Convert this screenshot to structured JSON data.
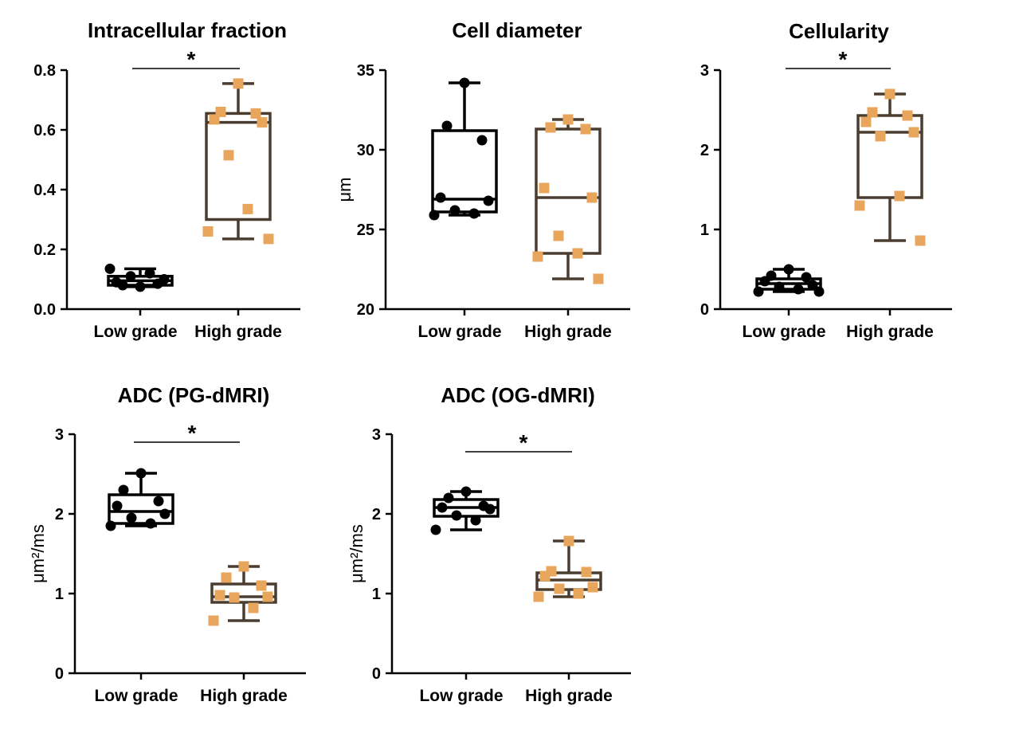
{
  "chart_data": [
    {
      "type": "box",
      "title": "Intracellular fraction",
      "ylabel": "",
      "ylim": [
        0,
        0.8
      ],
      "yticks": [
        "0.0",
        "0.2",
        "0.4",
        "0.6",
        "0.8"
      ],
      "categories": [
        "Low grade",
        "High grade"
      ],
      "significance": "*",
      "series": [
        {
          "name": "Low grade",
          "color": "#000000",
          "box": {
            "min": 0.075,
            "q1": 0.08,
            "median": 0.095,
            "q3": 0.11,
            "max": 0.135
          },
          "points": [
            0.075,
            0.08,
            0.085,
            0.09,
            0.1,
            0.11,
            0.12,
            0.135
          ]
        },
        {
          "name": "High grade",
          "color": "#e8a55c",
          "box": {
            "min": 0.235,
            "q1": 0.3,
            "median": 0.625,
            "q3": 0.655,
            "max": 0.755
          },
          "points": [
            0.755,
            0.66,
            0.655,
            0.635,
            0.625,
            0.515,
            0.335,
            0.26,
            0.235
          ]
        }
      ]
    },
    {
      "type": "box",
      "title": "Cell diameter",
      "ylabel": "μm",
      "ylim": [
        20,
        35
      ],
      "yticks": [
        "20",
        "25",
        "30",
        "35"
      ],
      "categories": [
        "Low grade",
        "High grade"
      ],
      "significance": "",
      "series": [
        {
          "name": "Low grade",
          "color": "#000000",
          "box": {
            "min": 25.9,
            "q1": 26.1,
            "median": 26.9,
            "q3": 31.2,
            "max": 34.2
          },
          "points": [
            34.2,
            31.5,
            30.6,
            27.0,
            26.8,
            26.2,
            26.0,
            25.9
          ]
        },
        {
          "name": "High grade",
          "color": "#e8a55c",
          "box": {
            "min": 21.9,
            "q1": 23.5,
            "median": 27.0,
            "q3": 31.3,
            "max": 31.9
          },
          "points": [
            31.9,
            31.4,
            31.3,
            27.6,
            27.0,
            24.6,
            23.5,
            23.3,
            21.9
          ]
        }
      ]
    },
    {
      "type": "box",
      "title": "Cellularity",
      "ylabel": "",
      "ylim": [
        0,
        3
      ],
      "yticks": [
        "0",
        "1",
        "2",
        "3"
      ],
      "categories": [
        "Low grade",
        "High grade"
      ],
      "significance": "*",
      "series": [
        {
          "name": "Low grade",
          "color": "#000000",
          "box": {
            "min": 0.22,
            "q1": 0.25,
            "median": 0.32,
            "q3": 0.38,
            "max": 0.5
          },
          "points": [
            0.5,
            0.42,
            0.4,
            0.35,
            0.3,
            0.28,
            0.25,
            0.22,
            0.22
          ]
        },
        {
          "name": "High grade",
          "color": "#e8a55c",
          "box": {
            "min": 0.86,
            "q1": 1.4,
            "median": 2.22,
            "q3": 2.43,
            "max": 2.7
          },
          "points": [
            2.7,
            2.47,
            2.43,
            2.35,
            2.22,
            2.17,
            1.42,
            1.3,
            0.86
          ]
        }
      ]
    },
    {
      "type": "box",
      "title": "ADC (PG-dMRI)",
      "ylabel": "μm²/ms",
      "ylim": [
        0,
        3
      ],
      "yticks": [
        "0",
        "1",
        "2",
        "3"
      ],
      "categories": [
        "Low grade",
        "High grade"
      ],
      "significance": "*",
      "series": [
        {
          "name": "Low grade",
          "color": "#000000",
          "box": {
            "min": 1.85,
            "q1": 1.88,
            "median": 2.03,
            "q3": 2.24,
            "max": 2.51
          },
          "points": [
            2.51,
            2.3,
            2.16,
            2.1,
            2.0,
            1.95,
            1.88,
            1.85
          ]
        },
        {
          "name": "High grade",
          "color": "#e8a55c",
          "box": {
            "min": 0.66,
            "q1": 0.89,
            "median": 0.96,
            "q3": 1.12,
            "max": 1.34
          },
          "points": [
            1.34,
            1.2,
            1.1,
            0.98,
            0.96,
            0.95,
            0.82,
            0.66
          ]
        }
      ]
    },
    {
      "type": "box",
      "title": "ADC (OG-dMRI)",
      "ylabel": "μm²/ms",
      "ylim": [
        0,
        3
      ],
      "yticks": [
        "0",
        "1",
        "2",
        "3"
      ],
      "categories": [
        "Low grade",
        "High grade"
      ],
      "significance": "*",
      "series": [
        {
          "name": "Low grade",
          "color": "#000000",
          "box": {
            "min": 1.8,
            "q1": 1.97,
            "median": 2.08,
            "q3": 2.18,
            "max": 2.28
          },
          "points": [
            2.28,
            2.2,
            2.1,
            2.08,
            2.06,
            1.98,
            1.92,
            1.8
          ]
        },
        {
          "name": "High grade",
          "color": "#e8a55c",
          "box": {
            "min": 0.96,
            "q1": 1.05,
            "median": 1.17,
            "q3": 1.26,
            "max": 1.66
          },
          "points": [
            1.66,
            1.28,
            1.27,
            1.22,
            1.08,
            1.06,
            1.0,
            0.96
          ]
        }
      ]
    }
  ]
}
